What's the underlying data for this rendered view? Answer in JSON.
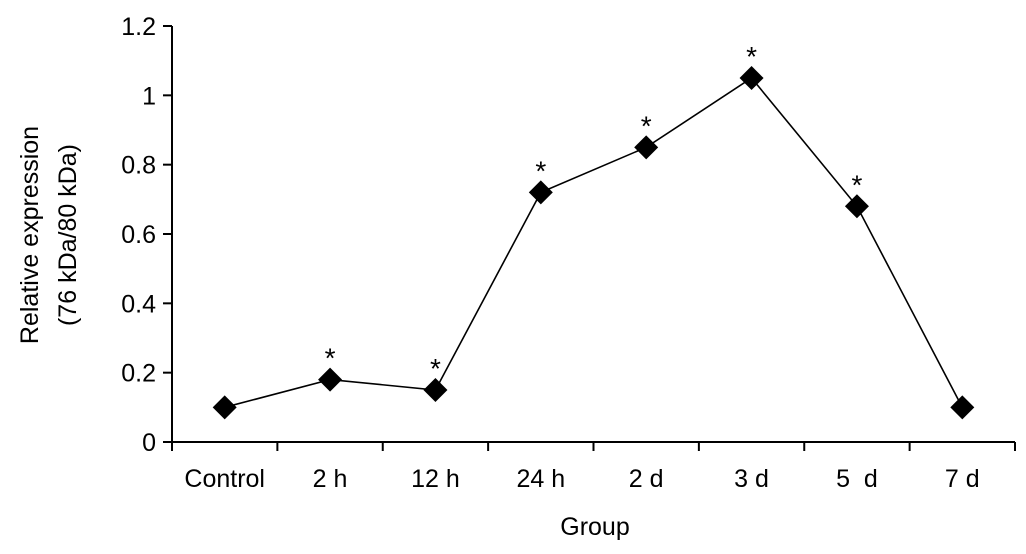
{
  "chart_data": {
    "type": "line",
    "title": "",
    "xlabel": "Group",
    "ylabel_line1": "Relative expression",
    "ylabel_line2": "(76 kDa/80 kDa)",
    "categories": [
      "Control",
      "2 h",
      "12 h",
      "24 h",
      "2 d",
      "3 d",
      "5  d",
      "7 d"
    ],
    "series": [
      {
        "values": [
          0.1,
          0.18,
          0.15,
          0.72,
          0.85,
          1.05,
          0.68,
          0.1
        ],
        "significant": [
          false,
          true,
          true,
          true,
          true,
          true,
          true,
          false
        ]
      }
    ],
    "significance_symbol": "*",
    "ylim": [
      0,
      1.2
    ],
    "yticks": [
      0,
      0.2,
      0.4,
      0.6,
      0.8,
      1,
      1.2
    ],
    "ytick_labels": [
      "0",
      "0.2",
      "0.4",
      "0.6",
      "0.8",
      "1",
      "1.2"
    ],
    "marker": "diamond",
    "line_color": "#000000",
    "marker_color": "#000000",
    "grid": false,
    "legend": "none"
  }
}
